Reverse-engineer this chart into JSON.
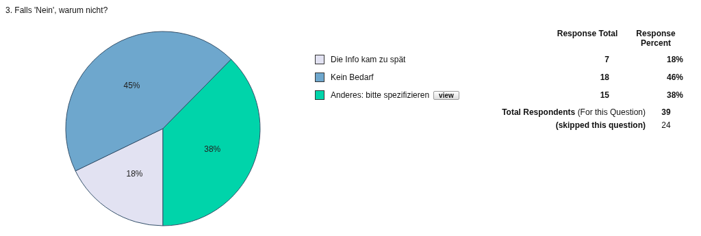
{
  "chart_data": {
    "type": "pie",
    "title": "3.  Falls 'Nein', warum nicht?",
    "categories": [
      "Die Info kam zu spät",
      "Kein Bedarf",
      "Anderes: bitte spezifizieren"
    ],
    "values": [
      18,
      45,
      38
    ],
    "colors": [
      "#e2e2f2",
      "#6ea7cd",
      "#00d4aa"
    ],
    "value_labels": [
      "18%",
      "45%",
      "38%"
    ],
    "legend": "right",
    "annotations": [
      "Response Total",
      "Response Percent",
      "18%",
      "46%",
      "38%",
      "Total Respondents",
      "(For this Question)",
      "39",
      "(skipped this question)",
      "24",
      "view",
      "7",
      "18",
      "15"
    ]
  }
}
